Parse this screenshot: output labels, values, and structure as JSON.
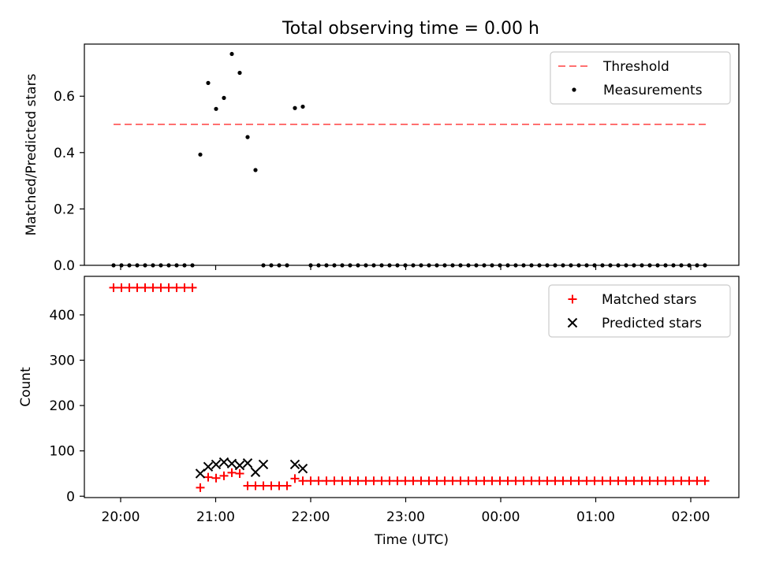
{
  "figure": {
    "title": "Total observing time = 0.00 h"
  },
  "chart_data": [
    {
      "type": "scatter",
      "panel": "top",
      "ylabel": "Matched/Predicted stars",
      "xlabel": "",
      "ylim": [
        0,
        0.785
      ],
      "yticks": [
        0.0,
        0.2,
        0.4,
        0.6
      ],
      "ytick_labels": [
        "0.0",
        "0.2",
        "0.4",
        "0.6"
      ],
      "x_tick_labels": [
        "20:00",
        "21:00",
        "22:00",
        "23:00",
        "00:00",
        "01:00",
        "02:00"
      ],
      "legend": {
        "position": "top-right",
        "entries": [
          "Threshold",
          "Measurements"
        ]
      },
      "threshold": {
        "name": "Threshold",
        "value": 0.5,
        "color": "#ff7070"
      },
      "series": [
        {
          "name": "Measurements",
          "color": "#000000",
          "points": [
            {
              "x": 0,
              "y": 0
            },
            {
              "x": 1,
              "y": 0
            },
            {
              "x": 2,
              "y": 0
            },
            {
              "x": 3,
              "y": 0
            },
            {
              "x": 4,
              "y": 0
            },
            {
              "x": 5,
              "y": 0
            },
            {
              "x": 6,
              "y": 0
            },
            {
              "x": 7,
              "y": 0
            },
            {
              "x": 8,
              "y": 0
            },
            {
              "x": 9,
              "y": 0
            },
            {
              "x": 10,
              "y": 0
            },
            {
              "x": 11,
              "y": 0.393
            },
            {
              "x": 12,
              "y": 0.647
            },
            {
              "x": 13,
              "y": 0.555
            },
            {
              "x": 14,
              "y": 0.594
            },
            {
              "x": 15,
              "y": 0.75
            },
            {
              "x": 16,
              "y": 0.683
            },
            {
              "x": 17,
              "y": 0.455
            },
            {
              "x": 18,
              "y": 0.338
            },
            {
              "x": 19,
              "y": 0
            },
            {
              "x": 20,
              "y": 0
            },
            {
              "x": 21,
              "y": 0
            },
            {
              "x": 22,
              "y": 0
            },
            {
              "x": 23,
              "y": 0.558
            },
            {
              "x": 24,
              "y": 0.563
            },
            {
              "x": 25,
              "y": 0
            },
            {
              "x": 26,
              "y": 0
            },
            {
              "x": 27,
              "y": 0
            },
            {
              "x": 28,
              "y": 0
            },
            {
              "x": 29,
              "y": 0
            },
            {
              "x": 30,
              "y": 0
            },
            {
              "x": 31,
              "y": 0
            },
            {
              "x": 32,
              "y": 0
            },
            {
              "x": 33,
              "y": 0
            },
            {
              "x": 34,
              "y": 0
            },
            {
              "x": 35,
              "y": 0
            },
            {
              "x": 36,
              "y": 0
            },
            {
              "x": 37,
              "y": 0
            },
            {
              "x": 38,
              "y": 0
            },
            {
              "x": 39,
              "y": 0
            },
            {
              "x": 40,
              "y": 0
            },
            {
              "x": 41,
              "y": 0
            },
            {
              "x": 42,
              "y": 0
            },
            {
              "x": 43,
              "y": 0
            },
            {
              "x": 44,
              "y": 0
            },
            {
              "x": 45,
              "y": 0
            },
            {
              "x": 46,
              "y": 0
            },
            {
              "x": 47,
              "y": 0
            },
            {
              "x": 48,
              "y": 0
            },
            {
              "x": 49,
              "y": 0
            },
            {
              "x": 50,
              "y": 0
            },
            {
              "x": 51,
              "y": 0
            },
            {
              "x": 52,
              "y": 0
            },
            {
              "x": 53,
              "y": 0
            },
            {
              "x": 54,
              "y": 0
            },
            {
              "x": 55,
              "y": 0
            },
            {
              "x": 56,
              "y": 0
            },
            {
              "x": 57,
              "y": 0
            },
            {
              "x": 58,
              "y": 0
            },
            {
              "x": 59,
              "y": 0
            },
            {
              "x": 60,
              "y": 0
            },
            {
              "x": 61,
              "y": 0
            },
            {
              "x": 62,
              "y": 0
            },
            {
              "x": 63,
              "y": 0
            },
            {
              "x": 64,
              "y": 0
            },
            {
              "x": 65,
              "y": 0
            },
            {
              "x": 66,
              "y": 0
            },
            {
              "x": 67,
              "y": 0
            },
            {
              "x": 68,
              "y": 0
            },
            {
              "x": 69,
              "y": 0
            },
            {
              "x": 70,
              "y": 0
            },
            {
              "x": 71,
              "y": 0
            },
            {
              "x": 72,
              "y": 0
            },
            {
              "x": 73,
              "y": 0
            },
            {
              "x": 74,
              "y": 0
            },
            {
              "x": 75,
              "y": 0
            }
          ]
        }
      ]
    },
    {
      "type": "scatter",
      "panel": "bottom",
      "ylabel": "Count",
      "xlabel": "Time (UTC)",
      "ylim": [
        -3,
        485
      ],
      "yticks": [
        0,
        100,
        200,
        300,
        400
      ],
      "ytick_labels": [
        "0",
        "100",
        "200",
        "300",
        "400"
      ],
      "x_tick_labels": [
        "20:00",
        "21:00",
        "22:00",
        "23:00",
        "00:00",
        "01:00",
        "02:00"
      ],
      "legend": {
        "position": "top-right",
        "entries": [
          "Matched stars",
          "Predicted stars"
        ]
      },
      "series": [
        {
          "name": "Matched stars",
          "marker": "plus",
          "color": "#ff0000",
          "points": [
            {
              "x": 0,
              "y": 460
            },
            {
              "x": 1,
              "y": 460
            },
            {
              "x": 2,
              "y": 460
            },
            {
              "x": 3,
              "y": 460
            },
            {
              "x": 4,
              "y": 460
            },
            {
              "x": 5,
              "y": 460
            },
            {
              "x": 6,
              "y": 460
            },
            {
              "x": 7,
              "y": 460
            },
            {
              "x": 8,
              "y": 460
            },
            {
              "x": 9,
              "y": 460
            },
            {
              "x": 10,
              "y": 460
            },
            {
              "x": 11,
              "y": 19
            },
            {
              "x": 12,
              "y": 42
            },
            {
              "x": 13,
              "y": 40
            },
            {
              "x": 14,
              "y": 45
            },
            {
              "x": 15,
              "y": 52
            },
            {
              "x": 16,
              "y": 50
            },
            {
              "x": 17,
              "y": 23
            },
            {
              "x": 18,
              "y": 23
            },
            {
              "x": 19,
              "y": 23
            },
            {
              "x": 20,
              "y": 23
            },
            {
              "x": 21,
              "y": 23
            },
            {
              "x": 22,
              "y": 23
            },
            {
              "x": 23,
              "y": 39
            },
            {
              "x": 24,
              "y": 34
            },
            {
              "x": 25,
              "y": 34
            },
            {
              "x": 26,
              "y": 34
            },
            {
              "x": 27,
              "y": 34
            },
            {
              "x": 28,
              "y": 34
            },
            {
              "x": 29,
              "y": 34
            },
            {
              "x": 30,
              "y": 34
            },
            {
              "x": 31,
              "y": 34
            },
            {
              "x": 32,
              "y": 34
            },
            {
              "x": 33,
              "y": 34
            },
            {
              "x": 34,
              "y": 34
            },
            {
              "x": 35,
              "y": 34
            },
            {
              "x": 36,
              "y": 34
            },
            {
              "x": 37,
              "y": 34
            },
            {
              "x": 38,
              "y": 34
            },
            {
              "x": 39,
              "y": 34
            },
            {
              "x": 40,
              "y": 34
            },
            {
              "x": 41,
              "y": 34
            },
            {
              "x": 42,
              "y": 34
            },
            {
              "x": 43,
              "y": 34
            },
            {
              "x": 44,
              "y": 34
            },
            {
              "x": 45,
              "y": 34
            },
            {
              "x": 46,
              "y": 34
            },
            {
              "x": 47,
              "y": 34
            },
            {
              "x": 48,
              "y": 34
            },
            {
              "x": 49,
              "y": 34
            },
            {
              "x": 50,
              "y": 34
            },
            {
              "x": 51,
              "y": 34
            },
            {
              "x": 52,
              "y": 34
            },
            {
              "x": 53,
              "y": 34
            },
            {
              "x": 54,
              "y": 34
            },
            {
              "x": 55,
              "y": 34
            },
            {
              "x": 56,
              "y": 34
            },
            {
              "x": 57,
              "y": 34
            },
            {
              "x": 58,
              "y": 34
            },
            {
              "x": 59,
              "y": 34
            },
            {
              "x": 60,
              "y": 34
            },
            {
              "x": 61,
              "y": 34
            },
            {
              "x": 62,
              "y": 34
            },
            {
              "x": 63,
              "y": 34
            },
            {
              "x": 64,
              "y": 34
            },
            {
              "x": 65,
              "y": 34
            },
            {
              "x": 66,
              "y": 34
            },
            {
              "x": 67,
              "y": 34
            },
            {
              "x": 68,
              "y": 34
            },
            {
              "x": 69,
              "y": 34
            },
            {
              "x": 70,
              "y": 34
            },
            {
              "x": 71,
              "y": 34
            },
            {
              "x": 72,
              "y": 34
            },
            {
              "x": 73,
              "y": 34
            },
            {
              "x": 74,
              "y": 34
            },
            {
              "x": 75,
              "y": 34
            }
          ]
        },
        {
          "name": "Predicted stars",
          "marker": "cross",
          "color": "#000000",
          "points": [
            {
              "x": 11,
              "y": 50
            },
            {
              "x": 12,
              "y": 65
            },
            {
              "x": 13,
              "y": 70
            },
            {
              "x": 14,
              "y": 75
            },
            {
              "x": 15,
              "y": 72
            },
            {
              "x": 16,
              "y": 68
            },
            {
              "x": 17,
              "y": 73
            },
            {
              "x": 18,
              "y": 53
            },
            {
              "x": 19,
              "y": 70
            },
            {
              "x": 23,
              "y": 70
            },
            {
              "x": 24,
              "y": 61
            }
          ]
        }
      ]
    }
  ]
}
